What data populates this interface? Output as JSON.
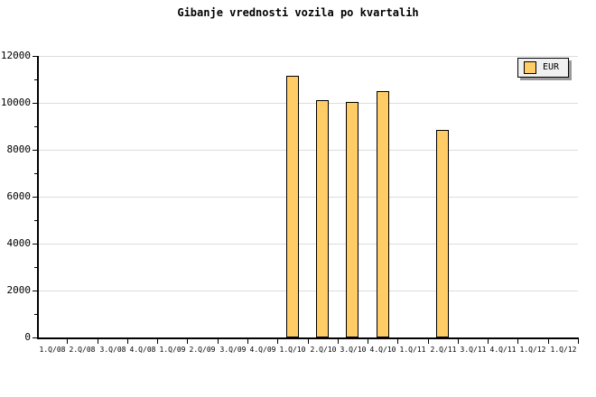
{
  "chart_data": {
    "type": "bar",
    "title": "Gibanje vrednosti vozila po kvartalih",
    "categories": [
      "1.Q/08",
      "2.Q/08",
      "3.Q/08",
      "4.Q/08",
      "1.Q/09",
      "2.Q/09",
      "3.Q/09",
      "4.Q/09",
      "1.Q/10",
      "2.Q/10",
      "3.Q/10",
      "4.Q/10",
      "1.Q/11",
      "2.Q/11",
      "3.Q/11",
      "4.Q/11",
      "1.Q/12",
      "1.Q/12"
    ],
    "series": [
      {
        "name": "EUR",
        "values": [
          null,
          null,
          null,
          null,
          null,
          null,
          null,
          null,
          11150,
          10100,
          10050,
          10500,
          null,
          8850,
          null,
          null,
          null,
          null
        ]
      }
    ],
    "xlabel": "",
    "ylabel": "",
    "ylim": [
      0,
      12000
    ],
    "yticks": [
      0,
      2000,
      4000,
      6000,
      8000,
      10000,
      12000
    ],
    "y_minor_tick_step": 1000,
    "grid": "horizontal",
    "legend": {
      "label": "EUR",
      "position": "top-right"
    }
  },
  "colors": {
    "bar_fill": "#FFCC66",
    "bar_border": "#000000",
    "axis": "#000000",
    "gridline": "#DCDCDC",
    "legend_bg": "#F0F0F0",
    "legend_shadow": "#999999",
    "title_text": "#000000"
  }
}
